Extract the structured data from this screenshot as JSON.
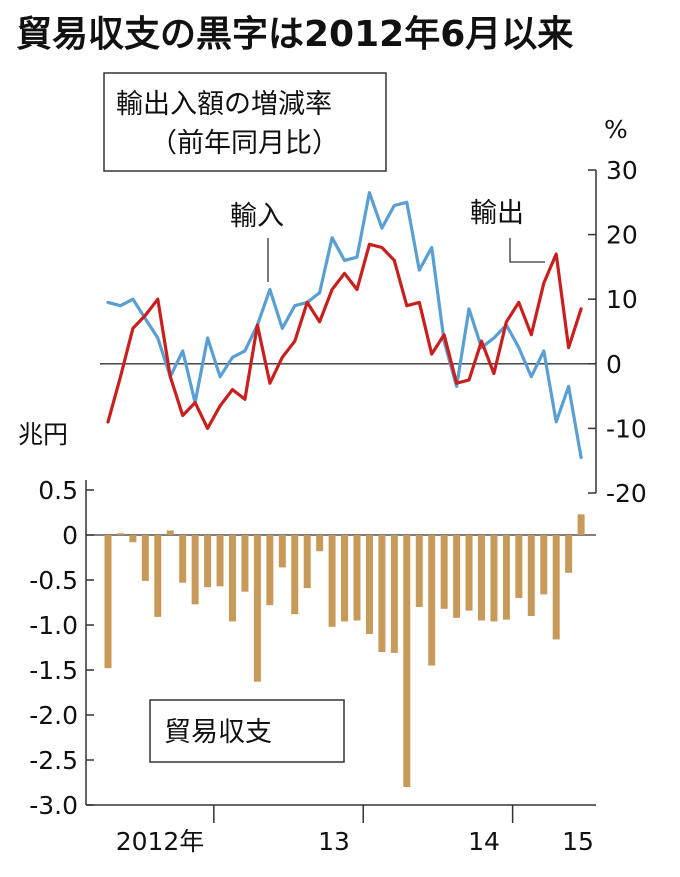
{
  "chart_data": [
    {
      "type": "line",
      "title": "貿易収支の黒字は2012年6月以来",
      "box_label": "輸出入額の増減率",
      "box_sublabel": "（前年同月比）",
      "unit": "%",
      "ylim": [
        -20,
        30
      ],
      "yticks": [
        "30",
        "20",
        "10",
        "0",
        "-10",
        "-20"
      ],
      "grid": false,
      "series": [
        {
          "name": "輸入",
          "color": "#5a9fd4",
          "values": [
            9.5,
            9.0,
            10.0,
            7.0,
            4.0,
            -2.0,
            2.0,
            -6.0,
            4.0,
            -2.0,
            1.0,
            2.0,
            6.0,
            11.5,
            5.5,
            9.0,
            9.5,
            11.0,
            19.5,
            16.0,
            16.5,
            26.5,
            21.0,
            24.5,
            25.0,
            14.5,
            18.0,
            3.5,
            -3.5,
            8.5,
            2.5,
            4.0,
            6.0,
            2.5,
            -2.0,
            2.0,
            -9.0,
            -3.5,
            -14.5
          ]
        },
        {
          "name": "輸出",
          "color": "#c8201e",
          "values": [
            -9.0,
            -2.0,
            5.5,
            7.5,
            10.0,
            -2.0,
            -8.0,
            -6.0,
            -10.0,
            -6.5,
            -4.0,
            -5.5,
            6.0,
            -3.0,
            1.0,
            3.5,
            9.5,
            6.5,
            11.5,
            14.0,
            11.5,
            18.5,
            18.0,
            16.0,
            9.0,
            9.5,
            1.5,
            4.5,
            -3.0,
            -2.5,
            3.5,
            -1.5,
            6.5,
            9.5,
            4.5,
            12.5,
            17.0,
            2.5,
            8.5
          ]
        }
      ]
    },
    {
      "type": "bar",
      "label": "貿易収支",
      "unit": "兆円",
      "ylim": [
        -3.0,
        0.5
      ],
      "yticks": [
        "0.5",
        "0",
        "-0.5",
        "-1.0",
        "-1.5",
        "-2.0",
        "-2.5",
        "-3.0"
      ],
      "color": "#c79a5a",
      "x_labels": [
        "2012年",
        "13",
        "14",
        "15"
      ],
      "values": [
        -1.48,
        0.02,
        -0.08,
        -0.51,
        -0.91,
        0.05,
        -0.53,
        -0.77,
        -0.58,
        -0.57,
        -0.96,
        -0.63,
        -1.63,
        -0.78,
        -0.36,
        -0.88,
        -0.59,
        -0.18,
        -1.02,
        -0.96,
        -0.95,
        -1.1,
        -1.3,
        -1.31,
        -2.8,
        -0.8,
        -1.45,
        -0.82,
        -0.92,
        -0.84,
        -0.95,
        -0.96,
        -0.94,
        -0.7,
        -0.9,
        -0.66,
        -1.16,
        -0.42,
        0.23
      ]
    }
  ]
}
